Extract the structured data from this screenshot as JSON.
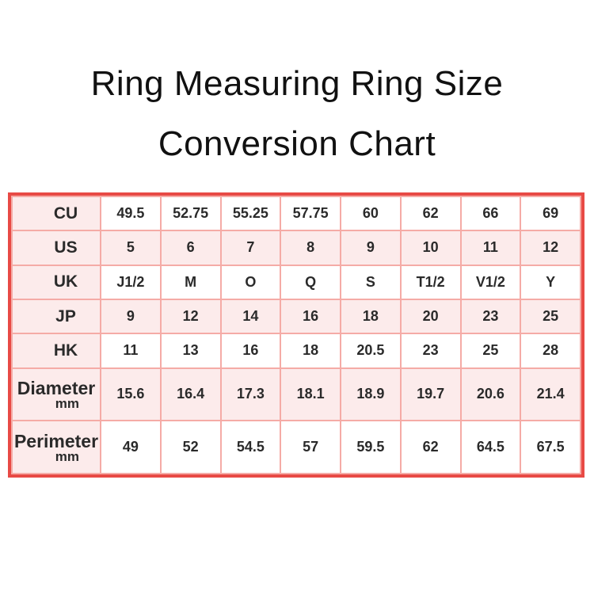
{
  "page": {
    "title_line1": "Ring Measuring Ring Size",
    "title_line2": "Conversion Chart"
  },
  "colors": {
    "outer_border": "#e84a45",
    "grid_line": "#f5aba6",
    "pink_cell": "#fcebeb",
    "white_cell": "#ffffff",
    "title_text": "#111111",
    "cell_text": "#2a2a2a"
  },
  "chart_data": {
    "type": "table",
    "title": "Ring Measuring Ring Size Conversion Chart",
    "row_headers": [
      "CU",
      "US",
      "UK",
      "JP",
      "HK",
      "Diameter mm",
      "Perimeter mm"
    ],
    "rows": [
      {
        "label": "CU",
        "sub": "",
        "values": [
          "49.5",
          "52.75",
          "55.25",
          "57.75",
          "60",
          "62",
          "66",
          "69"
        ]
      },
      {
        "label": "US",
        "sub": "",
        "values": [
          "5",
          "6",
          "7",
          "8",
          "9",
          "10",
          "11",
          "12"
        ]
      },
      {
        "label": "UK",
        "sub": "",
        "values": [
          "J1/2",
          "M",
          "O",
          "Q",
          "S",
          "T1/2",
          "V1/2",
          "Y"
        ]
      },
      {
        "label": "JP",
        "sub": "",
        "values": [
          "9",
          "12",
          "14",
          "16",
          "18",
          "20",
          "23",
          "25"
        ]
      },
      {
        "label": "HK",
        "sub": "",
        "values": [
          "11",
          "13",
          "16",
          "18",
          "20.5",
          "23",
          "25",
          "28"
        ]
      },
      {
        "label": "Diameter",
        "sub": "mm",
        "values": [
          "15.6",
          "16.4",
          "17.3",
          "18.1",
          "18.9",
          "19.7",
          "20.6",
          "21.4"
        ]
      },
      {
        "label": "Perimeter",
        "sub": "mm",
        "values": [
          "49",
          "52",
          "54.5",
          "57",
          "59.5",
          "62",
          "64.5",
          "67.5"
        ]
      }
    ]
  }
}
